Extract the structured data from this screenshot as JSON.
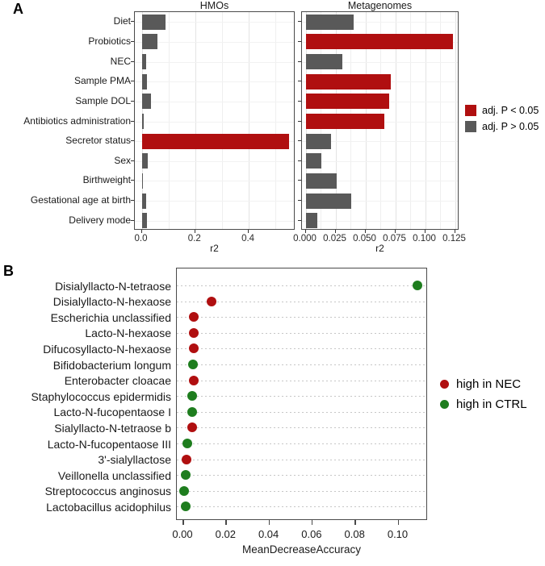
{
  "figure": {
    "panel_a_label": "A",
    "panel_b_label": "B"
  },
  "colors": {
    "significant_red": "#b00f10",
    "nonsignificant_gray": "#595959",
    "ctrl_green": "#1e7d1e"
  },
  "chart_data": [
    {
      "id": "panel-a",
      "type": "bar",
      "orientation": "horizontal",
      "xlabel": "r2",
      "categories": [
        "Diet",
        "Probiotics",
        "NEC",
        "Sample PMA",
        "Sample DOL",
        "Antibiotics administration",
        "Secretor status",
        "Sex",
        "Birthweight",
        "Gestational age at birth",
        "Delivery mode"
      ],
      "series": [
        {
          "name": "HMOs",
          "values": [
            0.09,
            0.06,
            0.018,
            0.02,
            0.036,
            0.009,
            0.55,
            0.024,
            0.004,
            0.018,
            0.019
          ],
          "significant": [
            false,
            false,
            false,
            false,
            false,
            false,
            true,
            false,
            false,
            false,
            false
          ]
        },
        {
          "name": "Metagenomes",
          "values": [
            0.04,
            0.123,
            0.031,
            0.071,
            0.07,
            0.066,
            0.021,
            0.013,
            0.026,
            0.038,
            0.01
          ],
          "significant": [
            false,
            true,
            false,
            true,
            true,
            true,
            false,
            false,
            false,
            false,
            false
          ]
        }
      ],
      "axes": [
        {
          "facet": "HMOs",
          "tick_values": [
            0,
            0.2,
            0.4
          ],
          "tick_labels": [
            "0.0",
            "0.2",
            "0.4"
          ],
          "range": [
            0,
            0.575
          ],
          "minor_step": 0.1
        },
        {
          "facet": "Metagenomes",
          "tick_values": [
            0,
            0.025,
            0.05,
            0.075,
            0.1,
            0.125
          ],
          "tick_labels": [
            "0.000",
            "0.025",
            "0.050",
            "0.075",
            "0.100",
            "0.125"
          ],
          "range": [
            0,
            0.129
          ],
          "minor_step": 0.0125
        }
      ],
      "grid": true,
      "legend": {
        "position": "right",
        "entries": [
          {
            "label": "adj. P < 0.05",
            "color": "#b00f10"
          },
          {
            "label": "adj. P > 0.05",
            "color": "#595959"
          }
        ]
      }
    },
    {
      "id": "panel-b",
      "type": "scatter",
      "style": "dotchart",
      "xlabel": "MeanDecreaseAccuracy",
      "categories": [
        "Disialyllacto-N-tetraose",
        "Disialyllacto-N-hexaose",
        "Escherichia unclassified",
        "Lacto-N-hexaose",
        "Difucosyllacto-N-hexaose",
        "Bifidobacterium longum",
        "Enterobacter cloacae",
        "Staphylococcus epidermidis",
        "Lacto-N-fucopentaose I",
        "Sialyllacto-N-tetraose b",
        "Lacto-N-fucopentaose III",
        "3'-sialyllactose",
        "Veillonella unclassified",
        "Streptococcus anginosus",
        "Lactobacillus acidophilus"
      ],
      "values": [
        0.109,
        0.013,
        0.005,
        0.005,
        0.005,
        0.0045,
        0.005,
        0.004,
        0.004,
        0.004,
        0.002,
        0.0015,
        0.001,
        0.0005,
        0.001
      ],
      "groups": [
        "CTRL",
        "NEC",
        "NEC",
        "NEC",
        "NEC",
        "CTRL",
        "NEC",
        "CTRL",
        "CTRL",
        "NEC",
        "CTRL",
        "NEC",
        "CTRL",
        "CTRL",
        "CTRL"
      ],
      "xaxis": {
        "tick_values": [
          0,
          0.02,
          0.04,
          0.06,
          0.08,
          0.1
        ],
        "tick_labels": [
          "0.00",
          "0.02",
          "0.04",
          "0.06",
          "0.08",
          "0.10"
        ],
        "range": [
          0,
          0.117
        ]
      },
      "grid": "dotted-horizontal",
      "legend": {
        "position": "right",
        "entries": [
          {
            "label": "high in NEC",
            "group": "NEC",
            "color": "#b00f10"
          },
          {
            "label": "high in CTRL",
            "group": "CTRL",
            "color": "#1e7d1e"
          }
        ]
      }
    }
  ]
}
